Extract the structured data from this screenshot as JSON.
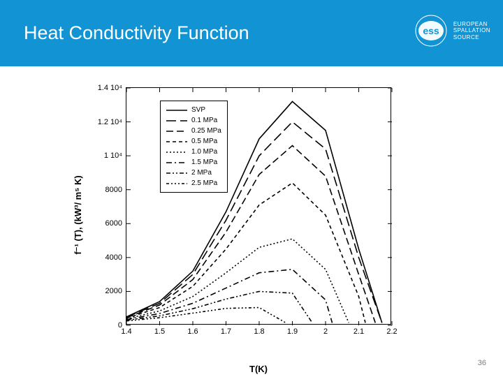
{
  "header": {
    "title": "Heat Conductivity Function",
    "brand_line1": "EUROPEAN",
    "brand_line2": "SPALLATION",
    "brand_line3": "SOURCE",
    "logo_text": "ess",
    "bg_color": "#1294d4"
  },
  "page_number": "36",
  "chart": {
    "type": "line",
    "xlabel": "T(K)",
    "ylabel": "f⁻¹ (T), (kW³/ m⁵ K)",
    "xlim": [
      1.4,
      2.2
    ],
    "ylim": [
      0,
      14000
    ],
    "xtick_labels": [
      "1.4",
      "1.5",
      "1.6",
      "1.7",
      "1.8",
      "1.9",
      "2",
      "2.1",
      "2.2"
    ],
    "ytick_labels": [
      "0",
      "2000",
      "4000",
      "6000",
      "8000",
      "1 10⁴",
      "1.2 10⁴",
      "1.4 10⁴"
    ],
    "ytick_values": [
      0,
      2000,
      4000,
      6000,
      8000,
      10000,
      12000,
      14000
    ],
    "line_color": "#000000",
    "background_color": "#ffffff",
    "frame_color": "#000000",
    "label_fontsize": 13,
    "tick_fontsize": 11,
    "legend_fontsize": 10,
    "series": [
      {
        "label": "SVP",
        "dash": "solid",
        "x": [
          1.4,
          1.5,
          1.6,
          1.7,
          1.8,
          1.9,
          2.0,
          2.1,
          2.17
        ],
        "y": [
          500,
          1400,
          3200,
          6700,
          11000,
          13200,
          11500,
          4500,
          150
        ]
      },
      {
        "label": "0.1 MPa",
        "dash": "long",
        "x": [
          1.4,
          1.5,
          1.6,
          1.7,
          1.8,
          1.9,
          2.0,
          2.1,
          2.17
        ],
        "y": [
          480,
          1300,
          3000,
          6200,
          10000,
          12000,
          10400,
          4000,
          150
        ]
      },
      {
        "label": "0.25 MPa",
        "dash": "med",
        "x": [
          1.4,
          1.5,
          1.6,
          1.7,
          1.8,
          1.9,
          2.0,
          2.1,
          2.15
        ],
        "y": [
          450,
          1200,
          2700,
          5500,
          8900,
          10600,
          8800,
          3000,
          150
        ]
      },
      {
        "label": "0.5 MPa",
        "dash": "short",
        "x": [
          1.4,
          1.5,
          1.6,
          1.7,
          1.8,
          1.9,
          2.0,
          2.1,
          2.12
        ],
        "y": [
          420,
          1050,
          2300,
          4500,
          7100,
          8400,
          6500,
          1700,
          150
        ]
      },
      {
        "label": "1.0 MPa",
        "dash": "dot",
        "x": [
          1.4,
          1.5,
          1.6,
          1.7,
          1.8,
          1.9,
          2.0,
          2.07
        ],
        "y": [
          380,
          850,
          1700,
          3100,
          4600,
          5100,
          3300,
          150
        ]
      },
      {
        "label": "1.5 MPa",
        "dash": "dashdot",
        "x": [
          1.4,
          1.5,
          1.6,
          1.7,
          1.8,
          1.9,
          2.0,
          2.02
        ],
        "y": [
          340,
          700,
          1300,
          2200,
          3100,
          3300,
          1500,
          150
        ]
      },
      {
        "label": "2 MPa",
        "dash": "dashdot2",
        "x": [
          1.4,
          1.5,
          1.6,
          1.7,
          1.8,
          1.9,
          1.96
        ],
        "y": [
          300,
          560,
          980,
          1550,
          2000,
          1900,
          150
        ]
      },
      {
        "label": "2.5 MPa",
        "dash": "dashdot3",
        "x": [
          1.4,
          1.5,
          1.6,
          1.7,
          1.8,
          1.88
        ],
        "y": [
          260,
          450,
          720,
          1000,
          1050,
          150
        ]
      }
    ],
    "dash_patterns": {
      "solid": "",
      "long": "14 6",
      "med": "10 5",
      "short": "5 4",
      "dot": "2 3",
      "dashdot": "8 4 2 4",
      "dashdot2": "6 3 2 3 2 3",
      "dashdot3": "4 3 2 3 2 3 2 3"
    }
  }
}
